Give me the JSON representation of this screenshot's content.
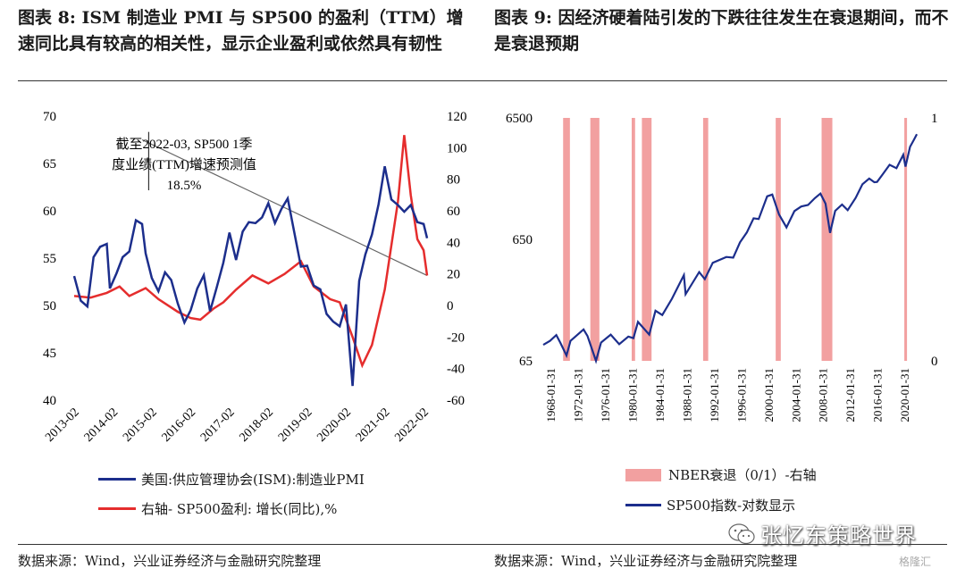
{
  "titles": {
    "left": "图表 8:  ISM 制造业 PMI 与 SP500 的盈利（TTM）增速同比具有较高的相关性，显示企业盈利或依然具有韧性",
    "right": "图表 9:  因经济硬着陆引发的下跌往往发生在衰退期间，而不是衰退预期"
  },
  "sources": {
    "left": "数据来源：Wind，兴业证券经济与金融研究院整理",
    "right": "数据来源：Wind，兴业证券经济与金融研究院整理"
  },
  "watermark": "张忆东策略世界",
  "brand": "格隆汇",
  "colors": {
    "navy": "#1c2e8c",
    "red": "#e52d2d",
    "recession": "#f2a0a0",
    "trend": "#666666"
  },
  "chart_data": [
    {
      "type": "line",
      "x_tick_labels": [
        "2013-02",
        "2014-02",
        "2015-02",
        "2016-02",
        "2017-02",
        "2018-02",
        "2019-02",
        "2020-02",
        "2021-02",
        "2022-02"
      ],
      "y_left_ticks": [
        "70",
        "65",
        "60",
        "55",
        "50",
        "45",
        "40"
      ],
      "y_right_ticks": [
        "120",
        "100",
        "80",
        "60",
        "40",
        "20",
        "0",
        "-20",
        "-40",
        "-60"
      ],
      "ylim_left": [
        40,
        70
      ],
      "ylim_right": [
        -60,
        120
      ],
      "annotation": "截至2022-03, SP500 1季度业绩(TTM)增速预测值18.5%",
      "annotation_lines": [
        "截至2022-03, SP500 1季",
        "度业绩(TTM)增速预测值",
        "18.5%"
      ],
      "legend": "bottom",
      "series": [
        {
          "name": "美国:供应管理协会(ISM):制造业PMI",
          "axis": "left",
          "color": "#1c2e8c",
          "points": [
            [
              2013.08,
              53.1
            ],
            [
              2013.25,
              50.5
            ],
            [
              2013.42,
              49.9
            ],
            [
              2013.58,
              55.1
            ],
            [
              2013.75,
              56.2
            ],
            [
              2013.92,
              56.5
            ],
            [
              2014.0,
              51.8
            ],
            [
              2014.17,
              53.4
            ],
            [
              2014.33,
              55.1
            ],
            [
              2014.5,
              55.7
            ],
            [
              2014.67,
              59.0
            ],
            [
              2014.83,
              58.6
            ],
            [
              2014.92,
              55.5
            ],
            [
              2015.08,
              52.9
            ],
            [
              2015.25,
              51.5
            ],
            [
              2015.42,
              53.5
            ],
            [
              2015.58,
              52.7
            ],
            [
              2015.75,
              50.2
            ],
            [
              2015.92,
              48.2
            ],
            [
              2016.08,
              49.5
            ],
            [
              2016.25,
              51.8
            ],
            [
              2016.42,
              53.2
            ],
            [
              2016.58,
              49.4
            ],
            [
              2016.75,
              51.9
            ],
            [
              2016.92,
              54.5
            ],
            [
              2017.08,
              57.7
            ],
            [
              2017.25,
              54.8
            ],
            [
              2017.42,
              57.8
            ],
            [
              2017.58,
              58.8
            ],
            [
              2017.75,
              58.7
            ],
            [
              2017.92,
              59.3
            ],
            [
              2018.08,
              60.8
            ],
            [
              2018.25,
              58.7
            ],
            [
              2018.42,
              60.2
            ],
            [
              2018.58,
              61.3
            ],
            [
              2018.75,
              57.7
            ],
            [
              2018.92,
              54.1
            ],
            [
              2019.08,
              54.2
            ],
            [
              2019.25,
              52.1
            ],
            [
              2019.42,
              51.7
            ],
            [
              2019.58,
              49.1
            ],
            [
              2019.75,
              48.3
            ],
            [
              2019.92,
              47.8
            ],
            [
              2020.08,
              50.1
            ],
            [
              2020.25,
              41.5
            ],
            [
              2020.42,
              52.6
            ],
            [
              2020.58,
              55.4
            ],
            [
              2020.75,
              57.5
            ],
            [
              2020.92,
              60.7
            ],
            [
              2021.08,
              64.7
            ],
            [
              2021.25,
              61.2
            ],
            [
              2021.42,
              60.6
            ],
            [
              2021.58,
              59.9
            ],
            [
              2021.75,
              60.6
            ],
            [
              2021.92,
              58.8
            ],
            [
              2022.08,
              58.6
            ],
            [
              2022.17,
              57.1
            ]
          ]
        },
        {
          "name": "右轴- SP500盈利: 增长(同比),%",
          "axis": "right",
          "color": "#e52d2d",
          "points": [
            [
              2013.08,
              6
            ],
            [
              2013.5,
              5
            ],
            [
              2013.92,
              8
            ],
            [
              2014.25,
              12
            ],
            [
              2014.5,
              6
            ],
            [
              2014.92,
              11
            ],
            [
              2015.25,
              4
            ],
            [
              2015.75,
              -4
            ],
            [
              2016.08,
              -8
            ],
            [
              2016.33,
              -9
            ],
            [
              2016.67,
              -2
            ],
            [
              2016.92,
              2
            ],
            [
              2017.25,
              10
            ],
            [
              2017.67,
              19
            ],
            [
              2018.08,
              14
            ],
            [
              2018.5,
              20
            ],
            [
              2018.92,
              28
            ],
            [
              2019.25,
              12
            ],
            [
              2019.67,
              4
            ],
            [
              2019.92,
              2
            ],
            [
              2020.25,
              -20
            ],
            [
              2020.5,
              -38
            ],
            [
              2020.75,
              -25
            ],
            [
              2021.08,
              10
            ],
            [
              2021.42,
              66
            ],
            [
              2021.58,
              108
            ],
            [
              2021.75,
              70
            ],
            [
              2021.92,
              42
            ],
            [
              2022.08,
              35
            ],
            [
              2022.17,
              19
            ]
          ]
        }
      ],
      "trendline": {
        "from": [
          2014.83,
          105
        ],
        "to": [
          2022.17,
          19
        ]
      }
    },
    {
      "type": "line",
      "x_tick_labels": [
        "1968-01-31",
        "1972-01-31",
        "1976-01-31",
        "1980-01-31",
        "1984-01-31",
        "1988-01-31",
        "1992-01-31",
        "1996-01-31",
        "2000-01-31",
        "2004-01-31",
        "2008-01-31",
        "2012-01-31",
        "2016-01-31",
        "2020-01-31"
      ],
      "y_left_ticks": [
        "6500",
        "650",
        "65"
      ],
      "y_right_ticks": [
        "1",
        "0"
      ],
      "y_left_scale": "log",
      "ylim_left": [
        65,
        6500
      ],
      "ylim_right": [
        0,
        1
      ],
      "legend": "bottom",
      "recessions": [
        [
          1969.92,
          1970.92
        ],
        [
          1973.92,
          1975.25
        ],
        [
          1980.0,
          1980.5
        ],
        [
          1981.5,
          1982.92
        ],
        [
          1990.5,
          1991.25
        ],
        [
          2001.17,
          2001.92
        ],
        [
          2007.92,
          2009.5
        ],
        [
          2020.08,
          2020.33
        ]
      ],
      "series": [
        {
          "name": "NBER衰退（0/1）-右轴",
          "axis": "right",
          "color": "#f2a0a0"
        },
        {
          "name": "SP500指数-对数显示",
          "axis": "left",
          "color": "#1c2e8c",
          "points": [
            [
              1967.0,
              88
            ],
            [
              1968.0,
              95
            ],
            [
              1968.92,
              106
            ],
            [
              1969.5,
              92
            ],
            [
              1970.42,
              72
            ],
            [
              1971.0,
              95
            ],
            [
              1972.92,
              118
            ],
            [
              1973.5,
              104
            ],
            [
              1974.75,
              65
            ],
            [
              1975.5,
              92
            ],
            [
              1976.92,
              107
            ],
            [
              1978.17,
              89
            ],
            [
              1979.5,
              103
            ],
            [
              1980.25,
              100
            ],
            [
              1980.92,
              136
            ],
            [
              1982.58,
              107
            ],
            [
              1983.5,
              168
            ],
            [
              1984.5,
              155
            ],
            [
              1985.92,
              211
            ],
            [
              1987.67,
              330
            ],
            [
              1987.92,
              230
            ],
            [
              1989.92,
              350
            ],
            [
              1990.75,
              306
            ],
            [
              1991.92,
              417
            ],
            [
              1993.92,
              466
            ],
            [
              1994.92,
              459
            ],
            [
              1995.92,
              615
            ],
            [
              1996.92,
              740
            ],
            [
              1997.92,
              970
            ],
            [
              1998.67,
              957
            ],
            [
              1999.92,
              1469
            ],
            [
              2000.67,
              1520
            ],
            [
              2001.67,
              1040
            ],
            [
              2002.75,
              815
            ],
            [
              2003.92,
              1111
            ],
            [
              2004.92,
              1211
            ],
            [
              2005.92,
              1248
            ],
            [
              2006.92,
              1418
            ],
            [
              2007.75,
              1549
            ],
            [
              2008.5,
              1280
            ],
            [
              2009.17,
              735
            ],
            [
              2009.92,
              1115
            ],
            [
              2010.92,
              1257
            ],
            [
              2011.75,
              1130
            ],
            [
              2012.92,
              1426
            ],
            [
              2013.92,
              1848
            ],
            [
              2014.92,
              2058
            ],
            [
              2015.67,
              1920
            ],
            [
              2016.08,
              1930
            ],
            [
              2016.92,
              2238
            ],
            [
              2017.92,
              2673
            ],
            [
              2018.92,
              2506
            ],
            [
              2019.92,
              3230
            ],
            [
              2020.25,
              2584
            ],
            [
              2020.92,
              3756
            ],
            [
              2021.5,
              4297
            ],
            [
              2021.92,
              4766
            ]
          ]
        }
      ]
    }
  ]
}
